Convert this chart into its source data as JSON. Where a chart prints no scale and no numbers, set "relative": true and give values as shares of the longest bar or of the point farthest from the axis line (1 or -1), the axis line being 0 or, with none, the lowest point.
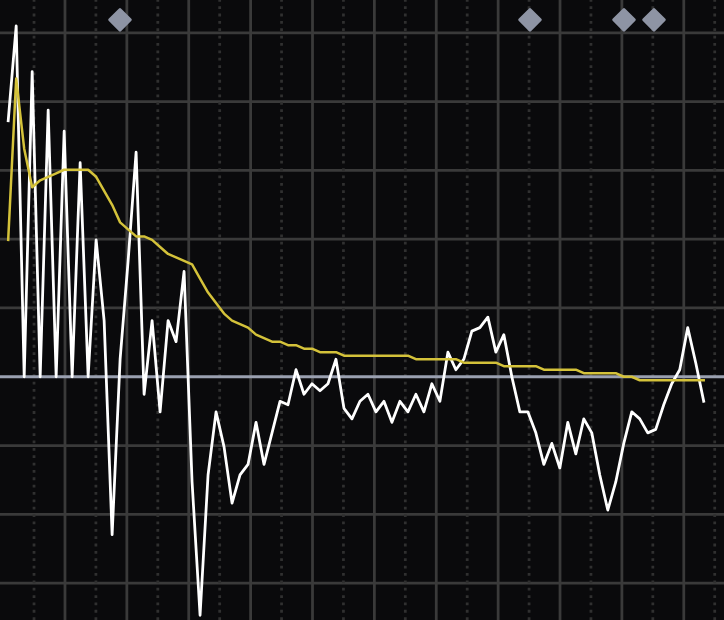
{
  "chart_data": {
    "type": "line",
    "relative": true,
    "grid": true,
    "marker": "none",
    "line_style": "solid",
    "categories": [
      null,
      null,
      null,
      null,
      null,
      null,
      null,
      null,
      null,
      null,
      null,
      null,
      null,
      null,
      null,
      null,
      null,
      null,
      null,
      null,
      null,
      null,
      null,
      null,
      null,
      null,
      null,
      null,
      null,
      null,
      null,
      null,
      null,
      null,
      null,
      null,
      null,
      null,
      null,
      null,
      null,
      null,
      null,
      null,
      null,
      null,
      null,
      null,
      null,
      null,
      null,
      null,
      null,
      null,
      null,
      null,
      null,
      null,
      null,
      null,
      null,
      null,
      null,
      null,
      null,
      null,
      null,
      null,
      null,
      null,
      null,
      null,
      null,
      null,
      null,
      null,
      null,
      null,
      null,
      null,
      null,
      null,
      null,
      null,
      null,
      null,
      null,
      null
    ],
    "series": [
      {
        "color": "#ffffff",
        "values": [
          0.73,
          1.0,
          0,
          0.87,
          0,
          0.76,
          0,
          0.7,
          0,
          0.61,
          0,
          0.39,
          0.16,
          -0.45,
          0.05,
          0.33,
          0.64,
          -0.05,
          0.16,
          -0.1,
          0.16,
          0.1,
          0.3,
          -0.3,
          -0.68,
          -0.28,
          -0.1,
          -0.2,
          -0.36,
          -0.28,
          -0.25,
          -0.13,
          -0.25,
          -0.16,
          -0.07,
          -0.08,
          0.02,
          -0.05,
          -0.02,
          -0.04,
          -0.02,
          0.05,
          -0.09,
          -0.12,
          -0.07,
          -0.05,
          -0.1,
          -0.07,
          -0.13,
          -0.07,
          -0.1,
          -0.05,
          -0.1,
          -0.02,
          -0.07,
          0.07,
          0.02,
          0.05,
          0.13,
          0.14,
          0.17,
          0.07,
          0.12,
          0.0,
          -0.1,
          -0.1,
          -0.16,
          -0.25,
          -0.19,
          -0.26,
          -0.13,
          -0.22,
          -0.12,
          -0.16,
          -0.28,
          -0.38,
          -0.3,
          -0.19,
          -0.1,
          -0.12,
          -0.16,
          -0.15,
          -0.08,
          -0.02,
          0.02,
          0.14,
          0.04,
          -0.07
        ]
      },
      {
        "color": "#d4c23a",
        "values": [
          0.39,
          0.85,
          0.65,
          0.54,
          0.56,
          0.57,
          0.58,
          0.59,
          0.59,
          0.59,
          0.59,
          0.57,
          0.53,
          0.49,
          0.44,
          0.42,
          0.4,
          0.4,
          0.39,
          0.37,
          0.35,
          0.34,
          0.33,
          0.32,
          0.28,
          0.24,
          0.21,
          0.18,
          0.16,
          0.15,
          0.14,
          0.12,
          0.11,
          0.1,
          0.1,
          0.09,
          0.09,
          0.08,
          0.08,
          0.07,
          0.07,
          0.07,
          0.06,
          0.06,
          0.06,
          0.06,
          0.06,
          0.06,
          0.06,
          0.06,
          0.06,
          0.05,
          0.05,
          0.05,
          0.05,
          0.05,
          0.05,
          0.04,
          0.04,
          0.04,
          0.04,
          0.04,
          0.03,
          0.03,
          0.03,
          0.03,
          0.03,
          0.02,
          0.02,
          0.02,
          0.02,
          0.02,
          0.01,
          0.01,
          0.01,
          0.01,
          0.01,
          0.0,
          0.0,
          -0.01,
          -0.01,
          -0.01,
          -0.01,
          -0.01,
          -0.01,
          -0.01,
          -0.01,
          -0.01
        ]
      }
    ]
  }
}
